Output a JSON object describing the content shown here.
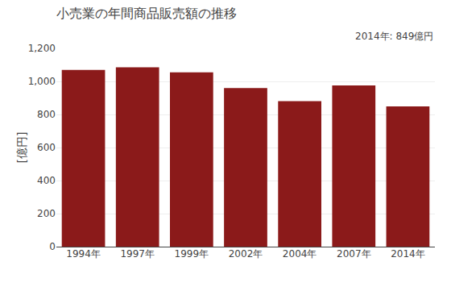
{
  "chart_data": {
    "type": "bar",
    "title": "小売業の年間商品販売額の推移",
    "ylabel": "[億円]",
    "annotation": "2014年: 849億円",
    "categories": [
      "1994年",
      "1997年",
      "1999年",
      "2002年",
      "2004年",
      "2007年",
      "2014年"
    ],
    "values": [
      1070,
      1085,
      1055,
      960,
      880,
      975,
      849
    ],
    "color": "#8B1A1A",
    "ylim": [
      0,
      1200
    ],
    "yticks": [
      0,
      200,
      400,
      600,
      800,
      {
        "value": 1000,
        "label": "1,000"
      },
      {
        "value": 1200,
        "label": "1,200"
      }
    ],
    "grid": true
  }
}
